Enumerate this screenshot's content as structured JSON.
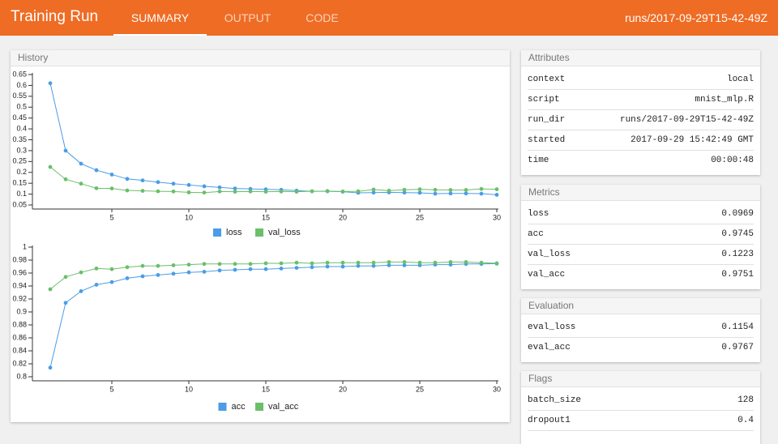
{
  "header": {
    "title": "Training Run",
    "tabs": [
      "SUMMARY",
      "OUTPUT",
      "CODE"
    ],
    "run": "runs/2017-09-29T15-42-49Z"
  },
  "history": {
    "title": "History"
  },
  "chart_data": [
    {
      "type": "line",
      "x": [
        1,
        2,
        3,
        4,
        5,
        6,
        7,
        8,
        9,
        10,
        11,
        12,
        13,
        14,
        15,
        16,
        17,
        18,
        19,
        20,
        21,
        22,
        23,
        24,
        25,
        26,
        27,
        28,
        29,
        30
      ],
      "series": [
        {
          "name": "loss",
          "color": "#4a9de6",
          "values": [
            0.61,
            0.3,
            0.24,
            0.21,
            0.19,
            0.17,
            0.163,
            0.155,
            0.148,
            0.142,
            0.136,
            0.131,
            0.126,
            0.124,
            0.122,
            0.12,
            0.116,
            0.113,
            0.113,
            0.111,
            0.106,
            0.107,
            0.108,
            0.107,
            0.106,
            0.102,
            0.103,
            0.103,
            0.102,
            0.0969
          ]
        },
        {
          "name": "val_loss",
          "color": "#6abf69",
          "values": [
            0.225,
            0.168,
            0.148,
            0.127,
            0.126,
            0.117,
            0.115,
            0.113,
            0.112,
            0.108,
            0.107,
            0.112,
            0.111,
            0.112,
            0.111,
            0.112,
            0.111,
            0.113,
            0.114,
            0.112,
            0.113,
            0.121,
            0.116,
            0.12,
            0.122,
            0.12,
            0.119,
            0.119,
            0.124,
            0.1223
          ]
        }
      ],
      "xlim": [
        0,
        30
      ],
      "xticks": [
        5,
        10,
        15,
        20,
        25,
        30
      ],
      "ylim": [
        0.05,
        0.65
      ],
      "yticks": [
        0.05,
        0.1,
        0.15,
        0.2,
        0.25,
        0.3,
        0.35,
        0.4,
        0.45,
        0.5,
        0.55,
        0.6,
        0.65
      ],
      "legend": "bottom"
    },
    {
      "type": "line",
      "x": [
        1,
        2,
        3,
        4,
        5,
        6,
        7,
        8,
        9,
        10,
        11,
        12,
        13,
        14,
        15,
        16,
        17,
        18,
        19,
        20,
        21,
        22,
        23,
        24,
        25,
        26,
        27,
        28,
        29,
        30
      ],
      "series": [
        {
          "name": "acc",
          "color": "#4a9de6",
          "values": [
            0.814,
            0.914,
            0.932,
            0.942,
            0.946,
            0.952,
            0.955,
            0.957,
            0.959,
            0.961,
            0.962,
            0.964,
            0.965,
            0.966,
            0.966,
            0.967,
            0.968,
            0.969,
            0.97,
            0.97,
            0.971,
            0.971,
            0.972,
            0.972,
            0.972,
            0.973,
            0.973,
            0.974,
            0.974,
            0.9745
          ]
        },
        {
          "name": "val_acc",
          "color": "#6abf69",
          "values": [
            0.935,
            0.954,
            0.961,
            0.967,
            0.966,
            0.969,
            0.971,
            0.971,
            0.972,
            0.973,
            0.974,
            0.974,
            0.974,
            0.974,
            0.975,
            0.975,
            0.976,
            0.975,
            0.976,
            0.976,
            0.976,
            0.976,
            0.977,
            0.977,
            0.976,
            0.976,
            0.977,
            0.977,
            0.976,
            0.9751
          ]
        }
      ],
      "xlim": [
        0,
        30
      ],
      "xticks": [
        5,
        10,
        15,
        20,
        25,
        30
      ],
      "ylim": [
        0.8,
        1
      ],
      "yticks": [
        0.8,
        0.82,
        0.84,
        0.86,
        0.88,
        0.9,
        0.92,
        0.94,
        0.96,
        0.98,
        1
      ],
      "legend": "bottom"
    }
  ],
  "panels": [
    {
      "title": "Attributes",
      "rows": [
        [
          "context",
          "local"
        ],
        [
          "script",
          "mnist_mlp.R"
        ],
        [
          "run_dir",
          "runs/2017-09-29T15-42-49Z"
        ],
        [
          "started",
          "2017-09-29 15:42:49 GMT"
        ],
        [
          "time",
          "00:00:48"
        ]
      ]
    },
    {
      "title": "Metrics",
      "rows": [
        [
          "loss",
          "0.0969"
        ],
        [
          "acc",
          "0.9745"
        ],
        [
          "val_loss",
          "0.1223"
        ],
        [
          "val_acc",
          "0.9751"
        ]
      ]
    },
    {
      "title": "Evaluation",
      "rows": [
        [
          "eval_loss",
          "0.1154"
        ],
        [
          "eval_acc",
          "0.9767"
        ]
      ]
    },
    {
      "title": "Flags",
      "rows": [
        [
          "batch_size",
          "128"
        ],
        [
          "dropout1",
          "0.4"
        ]
      ]
    }
  ]
}
